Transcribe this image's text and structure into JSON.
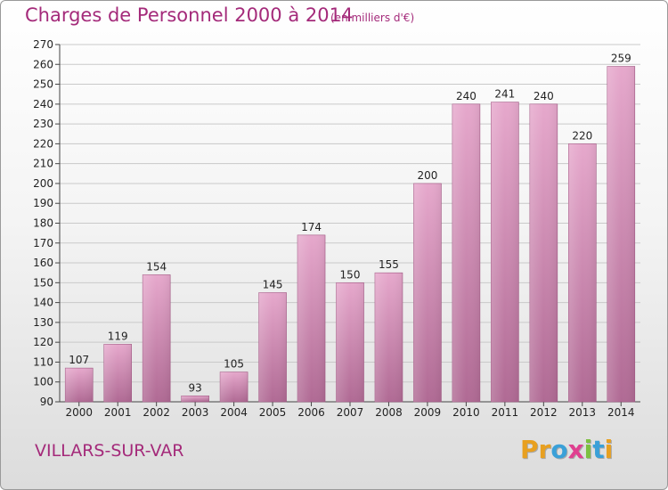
{
  "header": {
    "title": "Charges de Personnel 2000 à 2014",
    "unit": "(en milliers d'€)"
  },
  "footer": {
    "commune": "VILLARS-SUR-VAR",
    "logo_letters": [
      "P",
      "r",
      "o",
      "x",
      "i",
      "t",
      "i"
    ],
    "logo_colors": [
      "#e8a020",
      "#e8a020",
      "#3aa0d8",
      "#e04090",
      "#7cc040",
      "#3aa0d8",
      "#e8a020"
    ]
  },
  "chart_data": {
    "type": "bar",
    "title": "Charges de Personnel 2000 à 2014",
    "subtitle": "(en milliers d'€)",
    "categories": [
      "2000",
      "2001",
      "2002",
      "2003",
      "2004",
      "2005",
      "2006",
      "2007",
      "2008",
      "2009",
      "2010",
      "2011",
      "2012",
      "2013",
      "2014"
    ],
    "values": [
      107,
      119,
      154,
      93,
      105,
      145,
      174,
      150,
      155,
      200,
      240,
      241,
      240,
      220,
      259
    ],
    "ylim": [
      90,
      270
    ],
    "yticks": [
      90,
      100,
      110,
      120,
      130,
      140,
      150,
      160,
      170,
      180,
      190,
      200,
      210,
      220,
      230,
      240,
      250,
      260,
      270
    ],
    "grid": true,
    "bar_color": "#d989b5"
  }
}
